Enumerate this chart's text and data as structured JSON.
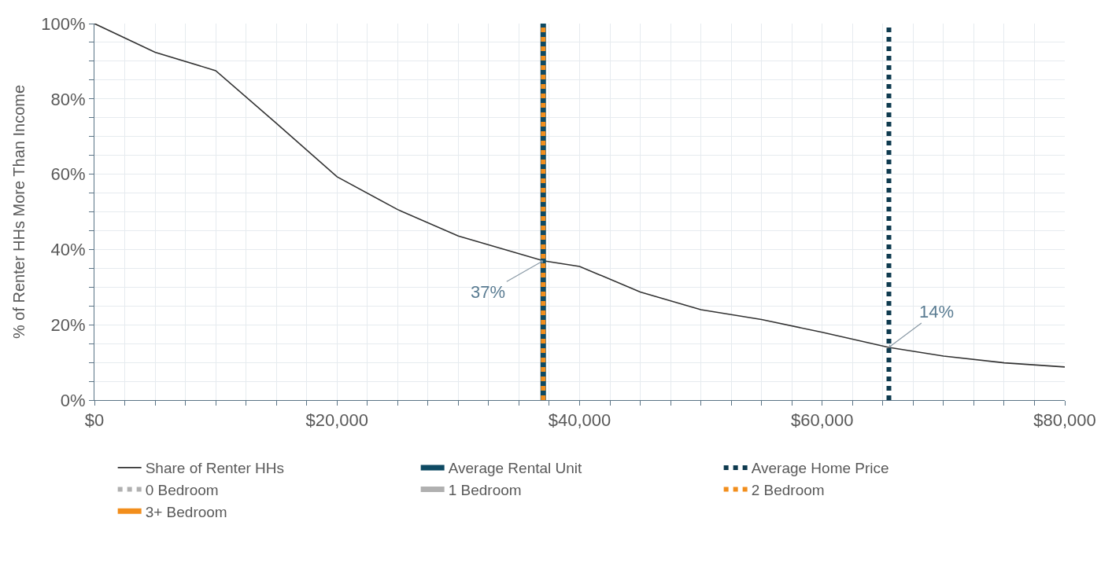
{
  "chart_data": {
    "type": "line",
    "ylabel": "% of Renter HHs More Than Income",
    "x": [
      0,
      5000,
      10000,
      15000,
      20000,
      25000,
      30000,
      37000,
      40000,
      45000,
      50000,
      55000,
      60000,
      65500,
      70000,
      75000,
      80000
    ],
    "series": [
      {
        "name": "Share of Renter HHs",
        "color": "#333333",
        "values": [
          100,
          92.4,
          87.5,
          73.5,
          59.3,
          50.6,
          43.6,
          37,
          35.5,
          28.7,
          24,
          21.4,
          18,
          14,
          11.7,
          9.9,
          8.8
        ]
      }
    ],
    "ref_lines": [
      {
        "axis": "x",
        "value": 37000,
        "label": "Average Rental Unit",
        "color": "#0e4a63",
        "line_style": "solid"
      },
      {
        "axis": "x",
        "value": 65500,
        "label": "Average Home Price",
        "color": "#0e3a4f",
        "line_style": "dotted"
      },
      {
        "axis": "x",
        "value": null,
        "label": "0 Bedroom",
        "color": "#b0b0b0",
        "line_style": "dotted"
      },
      {
        "axis": "x",
        "value": null,
        "label": "1 Bedroom",
        "color": "#b0b0b0",
        "line_style": "solid"
      },
      {
        "axis": "x",
        "value": 37000,
        "label": "2 Bedroom",
        "color": "#f28e1c",
        "line_style": "dotted"
      },
      {
        "axis": "x",
        "value": null,
        "label": "3+ Bedroom",
        "color": "#f28e1c",
        "line_style": "solid"
      }
    ],
    "annotations": [
      {
        "text": "37%",
        "x": 37000,
        "y": 37
      },
      {
        "text": "14%",
        "x": 65500,
        "y": 14
      }
    ],
    "xlim": [
      0,
      80000
    ],
    "ylim": [
      0,
      100
    ],
    "xticks": [
      {
        "value": 0,
        "label": "$0"
      },
      {
        "value": 2500,
        "label": null
      },
      {
        "value": 5000,
        "label": null
      },
      {
        "value": 7500,
        "label": null
      },
      {
        "value": 10000,
        "label": null
      },
      {
        "value": 12500,
        "label": null
      },
      {
        "value": 15000,
        "label": null
      },
      {
        "value": 17500,
        "label": null
      },
      {
        "value": 20000,
        "label": "$20,000"
      },
      {
        "value": 22500,
        "label": null
      },
      {
        "value": 25000,
        "label": null
      },
      {
        "value": 27500,
        "label": null
      },
      {
        "value": 30000,
        "label": null
      },
      {
        "value": 32500,
        "label": null
      },
      {
        "value": 35000,
        "label": null
      },
      {
        "value": 37500,
        "label": null
      },
      {
        "value": 40000,
        "label": "$40,000"
      },
      {
        "value": 42500,
        "label": null
      },
      {
        "value": 45000,
        "label": null
      },
      {
        "value": 47500,
        "label": null
      },
      {
        "value": 50000,
        "label": null
      },
      {
        "value": 52500,
        "label": null
      },
      {
        "value": 55000,
        "label": null
      },
      {
        "value": 57500,
        "label": null
      },
      {
        "value": 60000,
        "label": "$60,000"
      },
      {
        "value": 62500,
        "label": null
      },
      {
        "value": 65000,
        "label": null
      },
      {
        "value": 67500,
        "label": null
      },
      {
        "value": 70000,
        "label": null
      },
      {
        "value": 72500,
        "label": null
      },
      {
        "value": 75000,
        "label": null
      },
      {
        "value": 77500,
        "label": null
      },
      {
        "value": 80000,
        "label": "$80,000"
      }
    ],
    "yticks": [
      {
        "value": 0,
        "label": "0%"
      },
      {
        "value": 5,
        "label": null
      },
      {
        "value": 10,
        "label": null
      },
      {
        "value": 15,
        "label": null
      },
      {
        "value": 20,
        "label": "20%"
      },
      {
        "value": 25,
        "label": null
      },
      {
        "value": 30,
        "label": null
      },
      {
        "value": 35,
        "label": null
      },
      {
        "value": 40,
        "label": "40%"
      },
      {
        "value": 45,
        "label": null
      },
      {
        "value": 50,
        "label": null
      },
      {
        "value": 55,
        "label": null
      },
      {
        "value": 60,
        "label": "60%"
      },
      {
        "value": 65,
        "label": null
      },
      {
        "value": 70,
        "label": null
      },
      {
        "value": 75,
        "label": null
      },
      {
        "value": 80,
        "label": "80%"
      },
      {
        "value": 85,
        "label": null
      },
      {
        "value": 90,
        "label": null
      },
      {
        "value": 95,
        "label": null
      },
      {
        "value": 100,
        "label": "100%"
      }
    ],
    "grid": true,
    "legend": "bottom",
    "line_style": "solid",
    "marker": "none"
  }
}
